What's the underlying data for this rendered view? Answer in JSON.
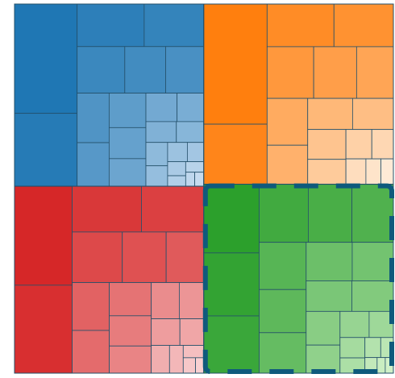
{
  "chart_data": {
    "type": "treemap",
    "groups": [
      {
        "colors": [
          "#1f77b4",
          "#c6dbef"
        ],
        "values": [
          108,
          72,
          45,
          40,
          35,
          30,
          28,
          25,
          22,
          20,
          18,
          16,
          14,
          12,
          10,
          9,
          8,
          7,
          6,
          5,
          4,
          3,
          3,
          2,
          2
        ]
      },
      {
        "colors": [
          "#d62728",
          "#f8d0d1"
        ],
        "values": [
          90,
          80,
          50,
          45,
          40,
          35,
          30,
          28,
          25,
          22,
          20,
          18,
          16,
          14,
          12,
          10,
          8,
          6,
          4,
          3,
          2
        ]
      },
      {
        "colors": [
          "#ff7f0e",
          "#feead6"
        ],
        "values": [
          120,
          60,
          45,
          40,
          38,
          35,
          30,
          30,
          25,
          22,
          20,
          18,
          15,
          12,
          10,
          8,
          6,
          5
        ]
      },
      {
        "colors": [
          "#2ca02c",
          "#d0f0c8"
        ],
        "values": [
          60,
          55,
          50,
          45,
          40,
          38,
          35,
          32,
          30,
          28,
          25,
          22,
          20,
          18,
          15,
          12,
          10,
          8,
          6,
          5,
          4,
          3,
          2,
          2
        ],
        "selected": true
      }
    ]
  }
}
